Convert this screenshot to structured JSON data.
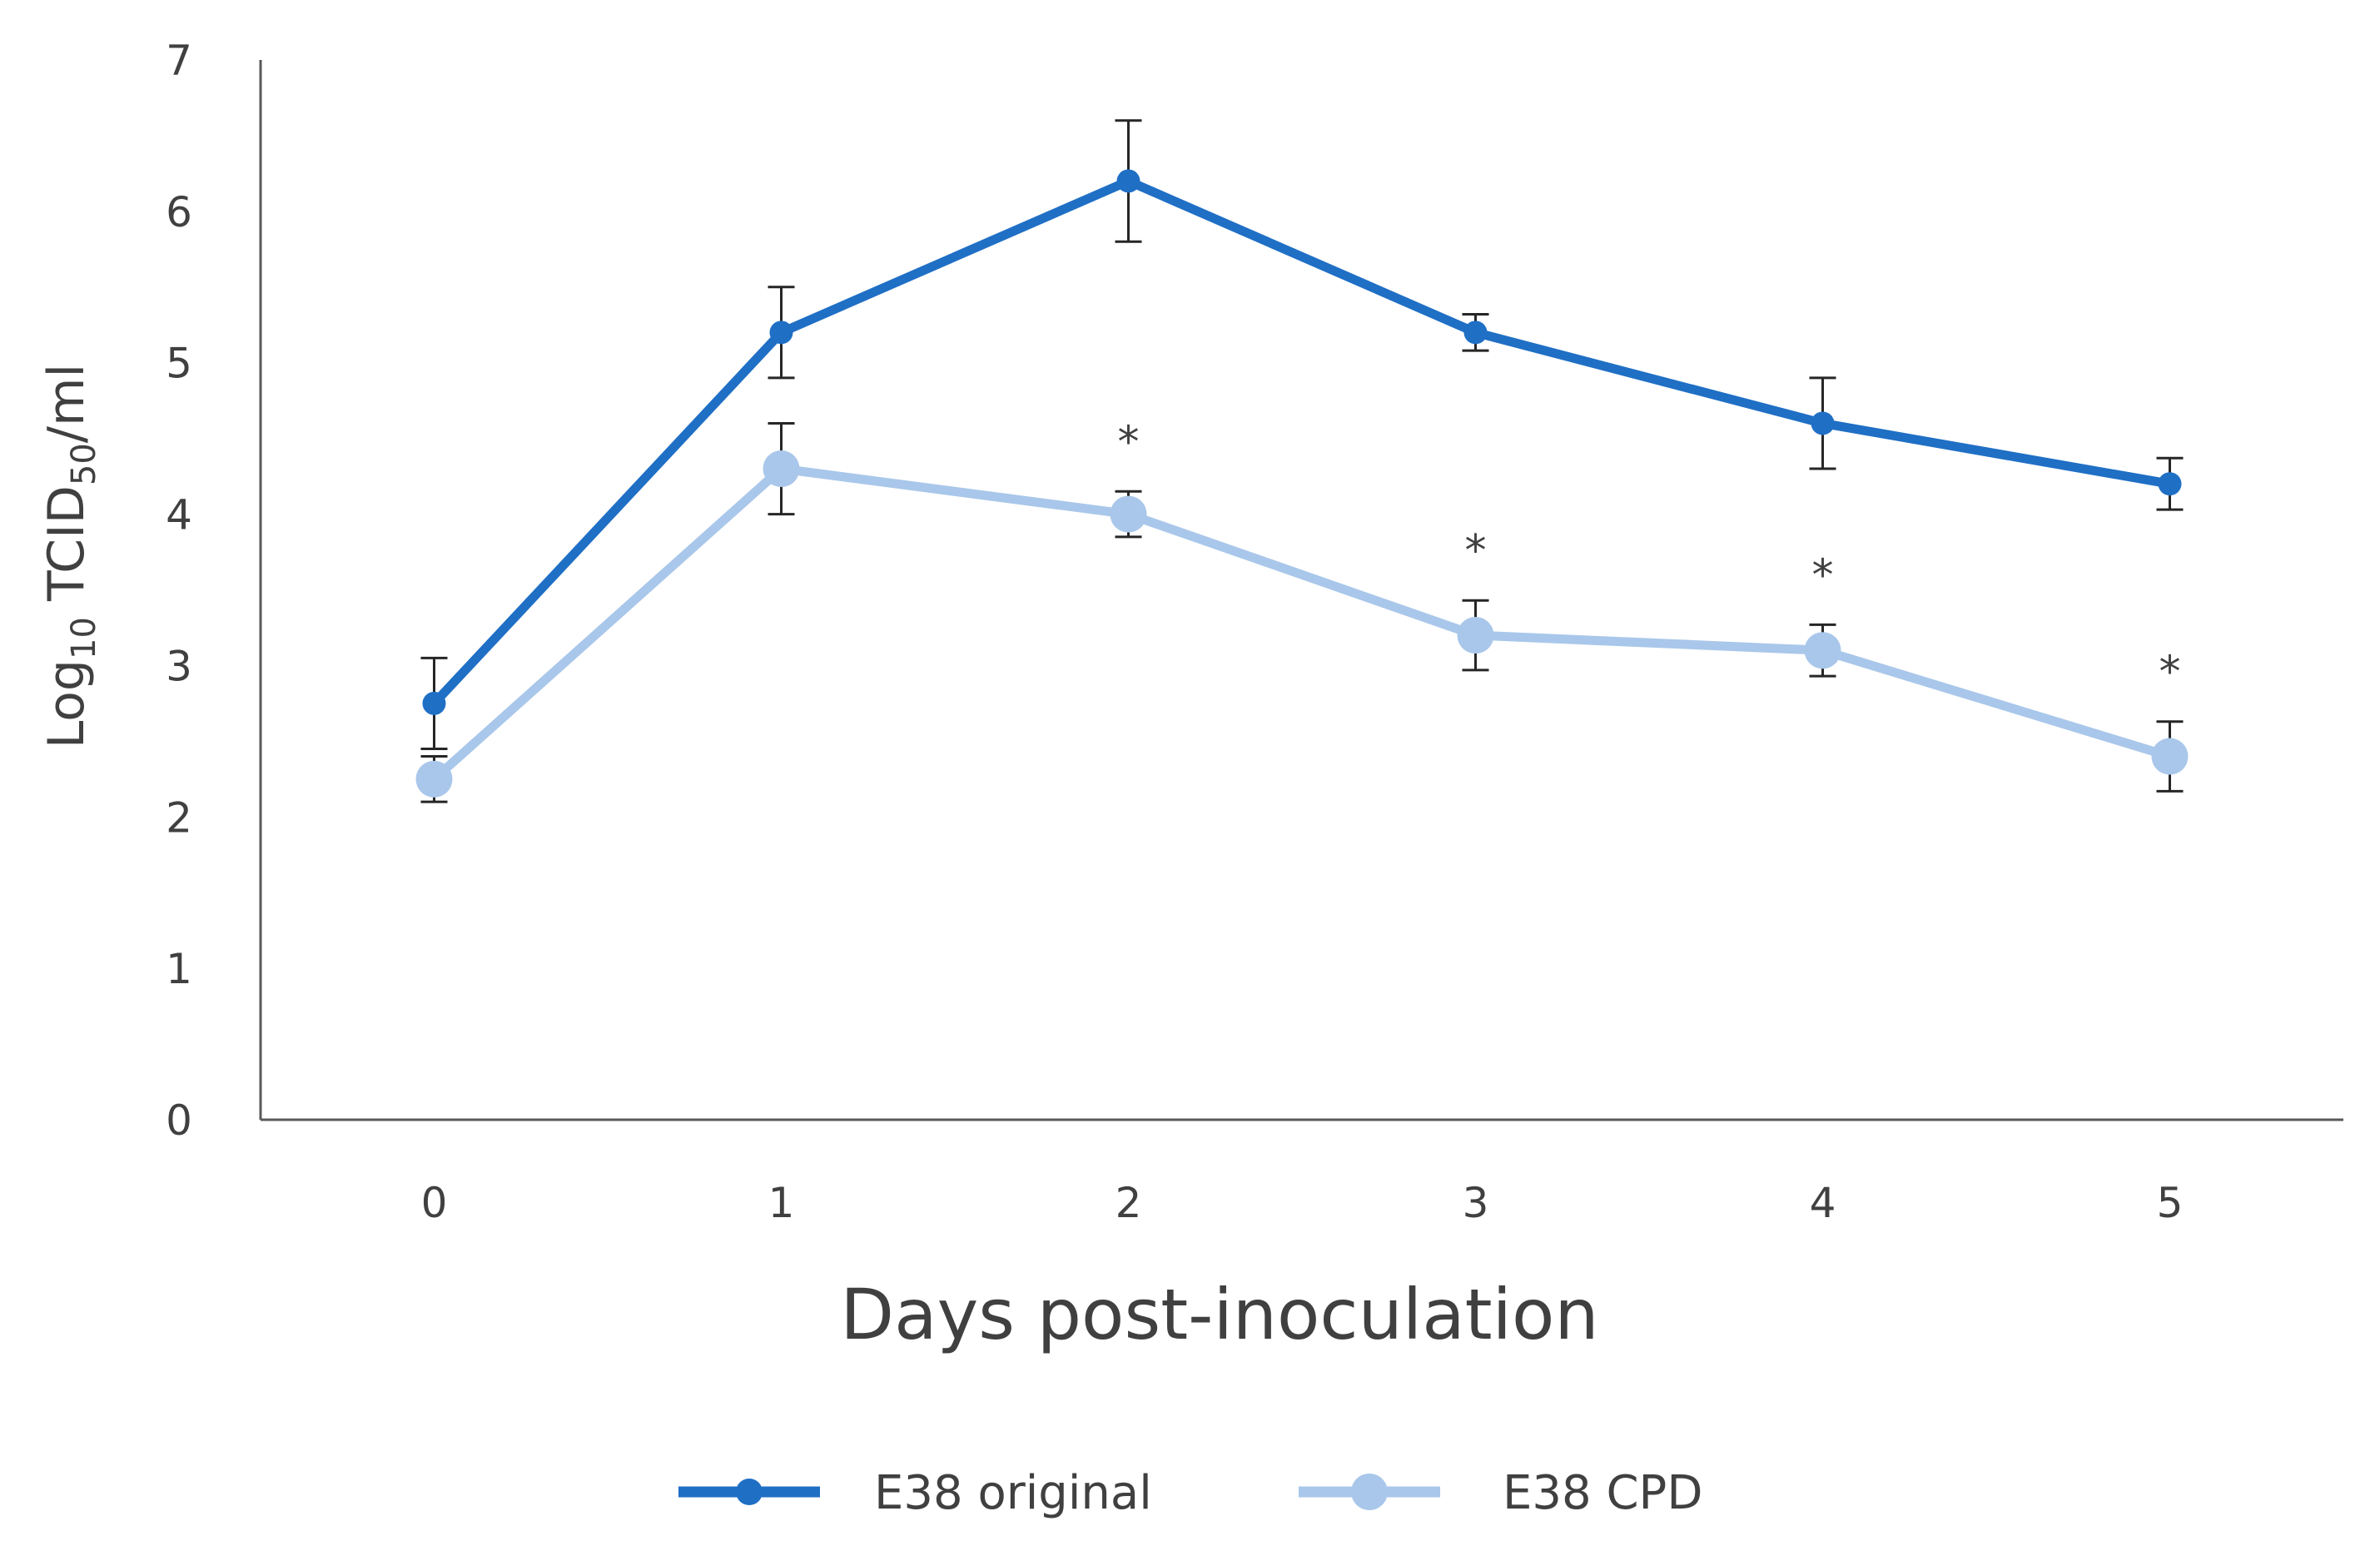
{
  "chart_data": {
    "type": "line",
    "title": "",
    "xlabel": "Days post-inoculation",
    "ylabel": {
      "prefix": "Log",
      "prefix_sub": "10",
      "main": " TCID",
      "main_sub": "50",
      "suffix": "/ml"
    },
    "x": [
      0,
      1,
      2,
      3,
      4,
      5
    ],
    "xlim": [
      -0.5,
      5.5
    ],
    "ylim": [
      0,
      7
    ],
    "yticks": [
      0,
      1,
      2,
      3,
      4,
      5,
      6,
      7
    ],
    "grid": false,
    "legend_position": "bottom",
    "significance_marker": "*",
    "series": [
      {
        "name": "E38 original",
        "color": "#1f6fc5",
        "values": [
          2.75,
          5.2,
          6.2,
          5.2,
          4.6,
          4.2
        ],
        "errors": [
          0.3,
          0.3,
          0.4,
          0.12,
          0.3,
          0.17
        ]
      },
      {
        "name": "E38 CPD",
        "color": "#a9c7ea",
        "values": [
          2.25,
          4.3,
          4.0,
          3.2,
          3.1,
          2.4
        ],
        "errors": [
          0.15,
          0.3,
          0.15,
          0.23,
          0.17,
          0.23
        ],
        "significant": [
          false,
          false,
          true,
          true,
          true,
          true
        ]
      }
    ]
  }
}
